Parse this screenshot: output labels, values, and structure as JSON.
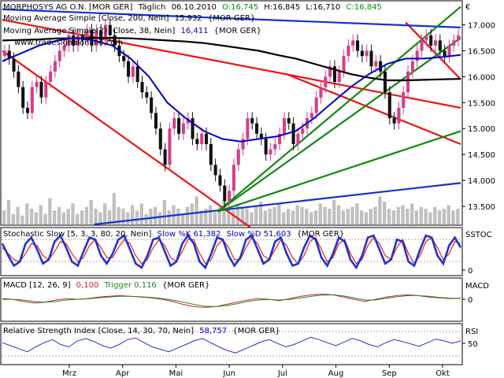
{
  "chart_data": {
    "type": "line",
    "currency_symbol": "€",
    "price_panel": {
      "header": {
        "instrument": "MORPHOSYS AG O.N. [MOR GER]",
        "period": "Täglich",
        "date": "06.10.2010",
        "open": "O:16,745",
        "high": "H:16,845",
        "low": "L:16,710",
        "close": "C:16,845"
      },
      "indicator_1": {
        "label": "Moving Average Simple [Close, 200, Nein]",
        "value": "15,932",
        "suffix": "{MOR GER}"
      },
      "indicator_2": {
        "label": "Moving Average Simple(2) [Close, 38, Nein]",
        "value": "16,411",
        "suffix": "{MOR GER}"
      },
      "watermark": "www.tradesignalonline.com",
      "y_ticks": [
        "17.000",
        "16.500",
        "16.000",
        "15.500",
        "15.000",
        "14.500",
        "14.000",
        "13.500"
      ],
      "y_tick_values": [
        17000,
        16500,
        16000,
        15500,
        15000,
        14500,
        14000,
        13500
      ],
      "y_range": [
        13150,
        17450
      ],
      "colors": {
        "candle_up": "#d4408a",
        "candle_down": "#111111",
        "ma200": "#000000",
        "ma38": "#0000c8",
        "trend_red": "#ee1111",
        "trend_blue": "#1133cc",
        "trend_green": "#118811",
        "volume": "#c0c0c0"
      },
      "close_series": [
        16500,
        16350,
        16100,
        15800,
        15400,
        15300,
        15800,
        15900,
        15600,
        15900,
        16100,
        16300,
        16500,
        16600,
        16800,
        16600,
        16800,
        16700,
        16900,
        16600,
        16900,
        16700,
        17000,
        16800,
        16600,
        16400,
        16300,
        16000,
        16200,
        15900,
        15700,
        15600,
        15300,
        15000,
        14600,
        14300,
        15000,
        15200,
        14900,
        15100,
        15200,
        14800,
        14700,
        14900,
        14700,
        14300,
        14100,
        13900,
        13600,
        13800,
        14300,
        14600,
        14800,
        15200,
        15100,
        14900,
        14800,
        14500,
        14600,
        14700,
        14900,
        15200,
        15100,
        14700,
        14900,
        15000,
        15200,
        15300,
        15600,
        15800,
        16000,
        16200,
        15900,
        16100,
        16400,
        16600,
        16700,
        16500,
        16400,
        16500,
        16200,
        16300,
        16100,
        15700,
        15200,
        15100,
        15400,
        15700,
        16100,
        16300,
        16500,
        16700,
        16800,
        16600,
        16700,
        16500,
        16400,
        16600,
        16700,
        16800
      ],
      "ma200_series": [
        16700,
        16710,
        16720,
        16740,
        16740,
        16750,
        16750,
        16740,
        16720,
        16700,
        16680,
        16650,
        16600,
        16550,
        16500,
        16420,
        16350,
        16250,
        16150,
        16050,
        15980,
        15930,
        15930,
        15940,
        15950,
        15960
      ],
      "ma38_series": [
        16300,
        16450,
        16600,
        16700,
        16750,
        16700,
        16600,
        16350,
        16000,
        15500,
        15200,
        14950,
        14800,
        14750,
        14800,
        14850,
        14950,
        15200,
        15500,
        15800,
        16050,
        16250,
        16350,
        16350,
        16380,
        16420
      ]
    },
    "volume_series": [
      8,
      14,
      6,
      10,
      5,
      12,
      9,
      7,
      11,
      6,
      15,
      8,
      10,
      7,
      9,
      12,
      6,
      8,
      10,
      14,
      9,
      7,
      12,
      8,
      18,
      10,
      9,
      7,
      11,
      8,
      12,
      6,
      9,
      10,
      7,
      14,
      8,
      11,
      9,
      6,
      10,
      12,
      16,
      8,
      9,
      11,
      7,
      10,
      14,
      9,
      8,
      12,
      10,
      9,
      7,
      11,
      13,
      8,
      9,
      10,
      12,
      7,
      9,
      8,
      11,
      10,
      9,
      7,
      8,
      12,
      10,
      9,
      14,
      11,
      8,
      9,
      10,
      12,
      8,
      7,
      9,
      10,
      16,
      13,
      9,
      8,
      10,
      11,
      9,
      12,
      8,
      10,
      9,
      7,
      10,
      8,
      9,
      11,
      8,
      9
    ],
    "stoch_panel": {
      "label": "Stochastic Slow [5, 3, 3, 80, 20, Nein]",
      "k_label": "Slow %K 61,382",
      "d_label": "Slow %D 51,603",
      "suffix": "{MOR GER}",
      "name": "SSTOC",
      "y_tick": "0",
      "k_series": [
        70,
        40,
        15,
        25,
        70,
        85,
        55,
        20,
        30,
        75,
        90,
        60,
        25,
        15,
        50,
        85,
        80,
        40,
        20,
        45,
        80,
        90,
        55,
        20,
        10,
        40,
        80,
        85,
        50,
        15,
        25,
        70,
        90,
        70,
        25,
        10,
        45,
        85,
        80,
        40,
        15,
        35,
        80,
        90,
        55,
        20,
        30,
        75,
        85,
        45,
        15,
        20,
        60,
        90,
        80,
        35,
        15,
        45,
        85,
        75,
        30,
        10,
        40,
        85,
        90,
        55,
        20,
        30,
        80,
        75,
        25,
        15,
        55,
        90,
        85,
        40,
        20,
        65,
        85,
        60
      ],
      "d_series": [
        60,
        45,
        30,
        25,
        45,
        70,
        65,
        40,
        30,
        50,
        75,
        70,
        45,
        25,
        35,
        65,
        80,
        60,
        35,
        35,
        60,
        80,
        70,
        40,
        20,
        30,
        60,
        80,
        65,
        35,
        25,
        50,
        80,
        80,
        45,
        20,
        30,
        65,
        80,
        60,
        30,
        30,
        60,
        85,
        70,
        40,
        30,
        55,
        80,
        65,
        35,
        20,
        40,
        75,
        85,
        55,
        25,
        35,
        70,
        80,
        45,
        20,
        30,
        65,
        85,
        70,
        40,
        30,
        60,
        80,
        45,
        20,
        40,
        75,
        85,
        60,
        30,
        45,
        75,
        70
      ]
    },
    "macd_panel": {
      "label": "MACD [12, 26, 9]",
      "macd_value": "0,100",
      "trigger_label": "Trigger 0,116",
      "suffix": "{MOR GER}",
      "name": "MACD",
      "y_tick": "0",
      "macd_series": [
        0.1,
        0.05,
        -0.1,
        -0.2,
        -0.15,
        0.0,
        0.1,
        0.05,
        0.1,
        0.2,
        0.25,
        0.3,
        0.25,
        0.2,
        0.15,
        0.05,
        -0.1,
        -0.3,
        -0.45,
        -0.5,
        -0.45,
        -0.3,
        -0.15,
        0.0,
        0.1,
        0.05,
        -0.05,
        0.1,
        0.25,
        0.35,
        0.4,
        0.35,
        0.2,
        0.05,
        -0.1,
        0.05,
        0.2,
        0.3,
        0.35,
        0.3,
        0.2,
        0.15,
        0.1,
        0.1
      ],
      "trigger_series": [
        0.05,
        0.05,
        0.0,
        -0.1,
        -0.15,
        -0.1,
        0.0,
        0.05,
        0.08,
        0.15,
        0.2,
        0.25,
        0.25,
        0.22,
        0.18,
        0.1,
        0.0,
        -0.15,
        -0.3,
        -0.42,
        -0.45,
        -0.38,
        -0.25,
        -0.1,
        0.0,
        0.03,
        0.0,
        0.05,
        0.15,
        0.25,
        0.33,
        0.35,
        0.28,
        0.15,
        0.0,
        0.0,
        0.12,
        0.22,
        0.3,
        0.3,
        0.25,
        0.18,
        0.13,
        0.12
      ]
    },
    "rsi_panel": {
      "label": "Relative Strength Index [Close, 14, 30, 70, Nein]",
      "value": "58,757",
      "suffix": "{MOR GER}",
      "name": "RSI",
      "y_tick": "50",
      "rsi_series": [
        55,
        50,
        45,
        40,
        48,
        55,
        60,
        52,
        48,
        58,
        62,
        57,
        50,
        46,
        52,
        60,
        63,
        55,
        48,
        44,
        40,
        46,
        52,
        58,
        62,
        55,
        48,
        42,
        38,
        44,
        50,
        56,
        60,
        54,
        48,
        52,
        58,
        64,
        60,
        55,
        50,
        56,
        62,
        58,
        52,
        48,
        55,
        60,
        57,
        53,
        49,
        55,
        61,
        58,
        54,
        58
      ]
    },
    "x_ticks": [
      "Mrz",
      "Apr",
      "Mai",
      "Jun",
      "Jul",
      "Aug",
      "Sep",
      "Okt"
    ],
    "trend_lines": [
      {
        "color": "red",
        "from": [
          0,
          16500
        ],
        "to": [
          0.54,
          13100
        ]
      },
      {
        "color": "red",
        "from": [
          0.0,
          17100
        ],
        "to": [
          1.0,
          15400
        ]
      },
      {
        "color": "red",
        "from": [
          0.62,
          16050
        ],
        "to": [
          1.0,
          14700
        ]
      },
      {
        "color": "red",
        "from": [
          0.88,
          17050
        ],
        "to": [
          1.0,
          15950
        ]
      },
      {
        "color": "blue",
        "from": [
          0.0,
          17300
        ],
        "to": [
          1.0,
          16950
        ]
      },
      {
        "color": "blue",
        "from": [
          0.2,
          13150
        ],
        "to": [
          1.0,
          13950
        ]
      },
      {
        "color": "green",
        "from": [
          0.47,
          13400
        ],
        "to": [
          1.0,
          17350
        ]
      },
      {
        "color": "green",
        "from": [
          0.47,
          13400
        ],
        "to": [
          1.0,
          16750
        ]
      },
      {
        "color": "green",
        "from": [
          0.47,
          13400
        ],
        "to": [
          1.0,
          14950
        ]
      }
    ]
  }
}
